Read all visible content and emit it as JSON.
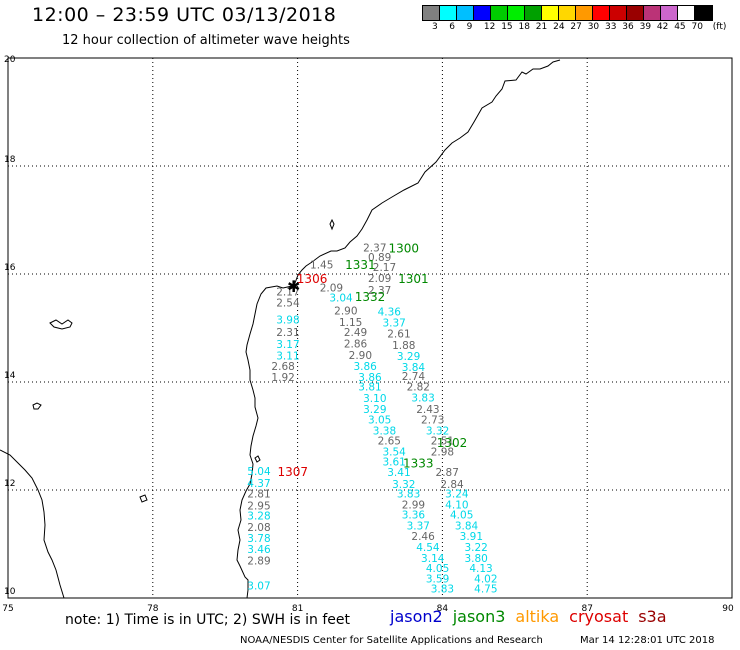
{
  "title": "12:00 – 23:59 UTC 03/13/2018",
  "subtitle": "12 hour collection of altimeter wave heights",
  "colorbar": {
    "colors": [
      "#808080",
      "#00ffff",
      "#00bfff",
      "#0000ff",
      "#00cc00",
      "#00ee00",
      "#00a000",
      "#ffff00",
      "#ffd700",
      "#ff9900",
      "#ff0000",
      "#cc0000",
      "#990000",
      "#bb3377",
      "#cc66cc",
      "#ffffff",
      "#000000"
    ],
    "labels": [
      "3",
      "6",
      "9",
      "12",
      "15",
      "18",
      "21",
      "24",
      "27",
      "30",
      "33",
      "36",
      "39",
      "42",
      "45",
      "70",
      "(ft)"
    ]
  },
  "axes": {
    "x_ticks": [
      "75",
      "78",
      "81",
      "84",
      "87",
      "90"
    ],
    "y_ticks": [
      "20",
      "18",
      "16",
      "14",
      "12",
      "10"
    ]
  },
  "wave_labels": [
    {
      "t": "2.37",
      "c": "gray",
      "lon": 82.6,
      "lat": 16.42
    },
    {
      "t": "0.89",
      "c": "gray",
      "lon": 82.7,
      "lat": 16.24
    },
    {
      "t": "1.45",
      "c": "gray",
      "lon": 81.5,
      "lat": 16.1
    },
    {
      "t": "2.17",
      "c": "gray",
      "lon": 82.8,
      "lat": 16.06
    },
    {
      "t": "2.09",
      "c": "gray",
      "lon": 81.7,
      "lat": 15.68
    },
    {
      "t": "2.09",
      "c": "gray",
      "lon": 82.7,
      "lat": 15.85
    },
    {
      "t": "2.17",
      "c": "gray",
      "lon": 80.8,
      "lat": 15.6
    },
    {
      "t": "2.37",
      "c": "gray",
      "lon": 82.7,
      "lat": 15.63
    },
    {
      "t": "2.54",
      "c": "gray",
      "lon": 80.8,
      "lat": 15.4
    },
    {
      "t": "3.04",
      "c": "cyan",
      "lon": 81.9,
      "lat": 15.49
    },
    {
      "t": "3.98",
      "c": "cyan",
      "lon": 80.8,
      "lat": 15.08
    },
    {
      "t": "2.90",
      "c": "gray",
      "lon": 82.0,
      "lat": 15.25
    },
    {
      "t": "4.36",
      "c": "cyan",
      "lon": 82.9,
      "lat": 15.23
    },
    {
      "t": "1.15",
      "c": "gray",
      "lon": 82.1,
      "lat": 15.04
    },
    {
      "t": "3.37",
      "c": "cyan",
      "lon": 83.0,
      "lat": 15.03
    },
    {
      "t": "2.31",
      "c": "gray",
      "lon": 80.8,
      "lat": 14.85
    },
    {
      "t": "2.49",
      "c": "gray",
      "lon": 82.2,
      "lat": 14.85
    },
    {
      "t": "2.61",
      "c": "gray",
      "lon": 83.1,
      "lat": 14.82
    },
    {
      "t": "3.17",
      "c": "cyan",
      "lon": 80.8,
      "lat": 14.63
    },
    {
      "t": "2.86",
      "c": "gray",
      "lon": 82.2,
      "lat": 14.64
    },
    {
      "t": "1.88",
      "c": "gray",
      "lon": 83.2,
      "lat": 14.61
    },
    {
      "t": "3.11",
      "c": "cyan",
      "lon": 80.8,
      "lat": 14.42
    },
    {
      "t": "2.90",
      "c": "gray",
      "lon": 82.3,
      "lat": 14.43
    },
    {
      "t": "3.29",
      "c": "cyan",
      "lon": 83.3,
      "lat": 14.41
    },
    {
      "t": "2.68",
      "c": "gray",
      "lon": 80.7,
      "lat": 14.22
    },
    {
      "t": "3.86",
      "c": "cyan",
      "lon": 82.4,
      "lat": 14.22
    },
    {
      "t": "3.84",
      "c": "cyan",
      "lon": 83.4,
      "lat": 14.2
    },
    {
      "t": "1.92",
      "c": "gray",
      "lon": 80.7,
      "lat": 14.02
    },
    {
      "t": "3.86",
      "c": "cyan",
      "lon": 82.5,
      "lat": 14.02
    },
    {
      "t": "2.74",
      "c": "gray",
      "lon": 83.4,
      "lat": 14.04
    },
    {
      "t": "3.81",
      "c": "cyan",
      "lon": 82.5,
      "lat": 13.84
    },
    {
      "t": "2.82",
      "c": "gray",
      "lon": 83.5,
      "lat": 13.84
    },
    {
      "t": "3.10",
      "c": "cyan",
      "lon": 82.6,
      "lat": 13.63
    },
    {
      "t": "3.83",
      "c": "cyan",
      "lon": 83.6,
      "lat": 13.64
    },
    {
      "t": "3.29",
      "c": "cyan",
      "lon": 82.6,
      "lat": 13.43
    },
    {
      "t": "2.43",
      "c": "gray",
      "lon": 83.7,
      "lat": 13.43
    },
    {
      "t": "3.05",
      "c": "cyan",
      "lon": 82.7,
      "lat": 13.23
    },
    {
      "t": "2.73",
      "c": "gray",
      "lon": 83.8,
      "lat": 13.23
    },
    {
      "t": "3.38",
      "c": "cyan",
      "lon": 82.8,
      "lat": 13.03
    },
    {
      "t": "3.32",
      "c": "cyan",
      "lon": 83.9,
      "lat": 13.03
    },
    {
      "t": "2.65",
      "c": "gray",
      "lon": 82.9,
      "lat": 12.84
    },
    {
      "t": "2.51",
      "c": "gray",
      "lon": 84.0,
      "lat": 12.84
    },
    {
      "t": "3.54",
      "c": "cyan",
      "lon": 83.0,
      "lat": 12.64
    },
    {
      "t": "2.98",
      "c": "gray",
      "lon": 84.0,
      "lat": 12.64
    },
    {
      "t": "3.61",
      "c": "cyan",
      "lon": 83.0,
      "lat": 12.45
    },
    {
      "t": "5.04",
      "c": "cyan",
      "lon": 80.2,
      "lat": 12.28
    },
    {
      "t": "3.41",
      "c": "cyan",
      "lon": 83.1,
      "lat": 12.26
    },
    {
      "t": "2.87",
      "c": "gray",
      "lon": 84.1,
      "lat": 12.26
    },
    {
      "t": "4.37",
      "c": "cyan",
      "lon": 80.2,
      "lat": 12.06
    },
    {
      "t": "3.32",
      "c": "cyan",
      "lon": 83.2,
      "lat": 12.04
    },
    {
      "t": "2.84",
      "c": "gray",
      "lon": 84.2,
      "lat": 12.04
    },
    {
      "t": "2.81",
      "c": "gray",
      "lon": 80.2,
      "lat": 11.86
    },
    {
      "t": "3.83",
      "c": "cyan",
      "lon": 83.3,
      "lat": 11.86
    },
    {
      "t": "3.24",
      "c": "cyan",
      "lon": 84.3,
      "lat": 11.86
    },
    {
      "t": "2.95",
      "c": "gray",
      "lon": 80.2,
      "lat": 11.64
    },
    {
      "t": "2.99",
      "c": "gray",
      "lon": 83.4,
      "lat": 11.66
    },
    {
      "t": "4.10",
      "c": "cyan",
      "lon": 84.3,
      "lat": 11.66
    },
    {
      "t": "3.28",
      "c": "cyan",
      "lon": 80.2,
      "lat": 11.45
    },
    {
      "t": "3.36",
      "c": "cyan",
      "lon": 83.4,
      "lat": 11.47
    },
    {
      "t": "4.05",
      "c": "cyan",
      "lon": 84.4,
      "lat": 11.47
    },
    {
      "t": "2.08",
      "c": "gray",
      "lon": 80.2,
      "lat": 11.24
    },
    {
      "t": "3.37",
      "c": "cyan",
      "lon": 83.5,
      "lat": 11.27
    },
    {
      "t": "3.84",
      "c": "cyan",
      "lon": 84.5,
      "lat": 11.27
    },
    {
      "t": "3.78",
      "c": "cyan",
      "lon": 80.2,
      "lat": 11.04
    },
    {
      "t": "2.46",
      "c": "gray",
      "lon": 83.6,
      "lat": 11.07
    },
    {
      "t": "3.91",
      "c": "cyan",
      "lon": 84.6,
      "lat": 11.07
    },
    {
      "t": "3.46",
      "c": "cyan",
      "lon": 80.2,
      "lat": 10.83
    },
    {
      "t": "4.54",
      "c": "cyan",
      "lon": 83.7,
      "lat": 10.87
    },
    {
      "t": "3.22",
      "c": "cyan",
      "lon": 84.7,
      "lat": 10.87
    },
    {
      "t": "2.89",
      "c": "gray",
      "lon": 80.2,
      "lat": 10.62
    },
    {
      "t": "3.14",
      "c": "cyan",
      "lon": 83.8,
      "lat": 10.67
    },
    {
      "t": "3.80",
      "c": "cyan",
      "lon": 84.7,
      "lat": 10.67
    },
    {
      "t": "4.05",
      "c": "cyan",
      "lon": 83.9,
      "lat": 10.48
    },
    {
      "t": "4.13",
      "c": "cyan",
      "lon": 84.8,
      "lat": 10.48
    },
    {
      "t": "3.59",
      "c": "cyan",
      "lon": 83.9,
      "lat": 10.29
    },
    {
      "t": "4.02",
      "c": "cyan",
      "lon": 84.9,
      "lat": 10.29
    },
    {
      "t": "3.07",
      "c": "cyan",
      "lon": 80.2,
      "lat": 10.16
    },
    {
      "t": "3.83",
      "c": "cyan",
      "lon": 84.0,
      "lat": 10.1
    },
    {
      "t": "4.75",
      "c": "cyan",
      "lon": 84.9,
      "lat": 10.1
    }
  ],
  "pass_labels": [
    {
      "t": "1300",
      "c": "green",
      "lon": 83.2,
      "lat": 16.4
    },
    {
      "t": "1331",
      "c": "green",
      "lon": 82.3,
      "lat": 16.09
    },
    {
      "t": "1306",
      "c": "red",
      "lon": 81.3,
      "lat": 15.83
    },
    {
      "t": "1301",
      "c": "green",
      "lon": 83.4,
      "lat": 15.83
    },
    {
      "t": "1332",
      "c": "green",
      "lon": 82.5,
      "lat": 15.5
    },
    {
      "t": "1302",
      "c": "green",
      "lon": 84.2,
      "lat": 12.8
    },
    {
      "t": "1333",
      "c": "green",
      "lon": 83.5,
      "lat": 12.42
    },
    {
      "t": "1307",
      "c": "red",
      "lon": 80.9,
      "lat": 12.26
    }
  ],
  "note": "note: 1) Time is in UTC; 2) SWH is in feet",
  "satellites": [
    {
      "name": "jason2",
      "color": "#0000cc"
    },
    {
      "name": "jason3",
      "color": "#008800"
    },
    {
      "name": "altika",
      "color": "#ff9900"
    },
    {
      "name": "cryosat",
      "color": "#dd0000"
    },
    {
      "name": "s3a",
      "color": "#990000"
    }
  ],
  "footer_left": "NOAA/NESDIS Center for Satellite Applications and Research",
  "footer_right": "Mar 14 12:28:01 UTC 2018"
}
